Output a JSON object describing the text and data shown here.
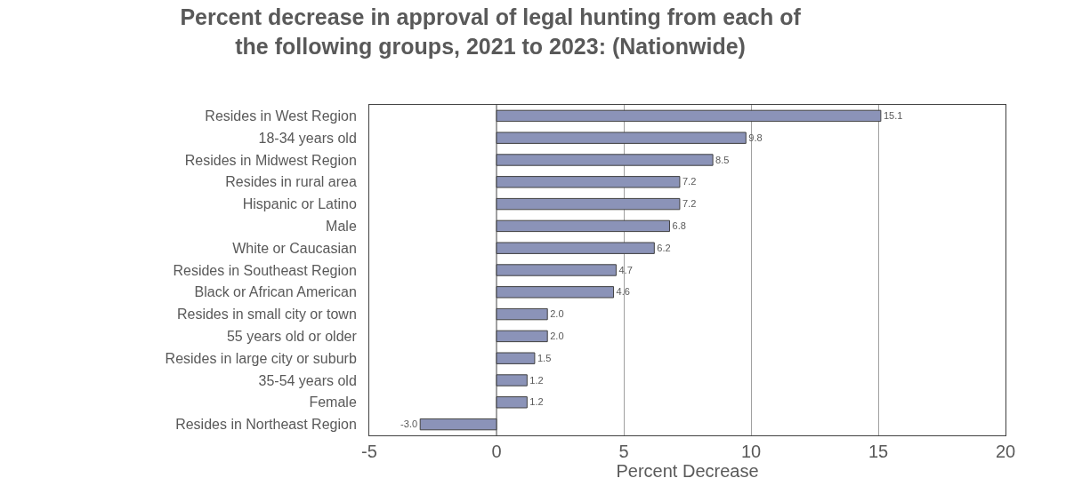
{
  "chart_data": {
    "type": "bar",
    "orientation": "horizontal",
    "title": "Percent decrease in approval of legal hunting from each of\nthe following groups, 2021 to 2023: (Nationwide)",
    "xlabel": "Percent Decrease",
    "categories": [
      "Resides in West Region",
      "18-34 years old",
      "Resides in Midwest Region",
      "Resides in rural area",
      "Hispanic or Latino",
      "Male",
      "White or Caucasian",
      "Resides in Southeast Region",
      "Black or African American",
      "Resides in small city or town",
      "55 years old or older",
      "Resides in large city or suburb",
      "35-54 years old",
      "Female",
      "Resides in Northeast Region"
    ],
    "values": [
      15.1,
      9.8,
      8.5,
      7.2,
      7.2,
      6.8,
      6.2,
      4.7,
      4.6,
      2.0,
      2.0,
      1.5,
      1.2,
      1.2,
      -3.0
    ],
    "value_labels": [
      "15.1",
      "9.8",
      "8.5",
      "7.2",
      "7.2",
      "6.8",
      "6.2",
      "4.7",
      "4.6",
      "2.0",
      "2.0",
      "1.5",
      "1.2",
      "1.2",
      "-3.0"
    ],
    "color": "#8b93b8",
    "xlim": [
      -5,
      20
    ],
    "xticks": [
      -5,
      0,
      5,
      10,
      15,
      20
    ],
    "grid": "x",
    "legend": false
  }
}
